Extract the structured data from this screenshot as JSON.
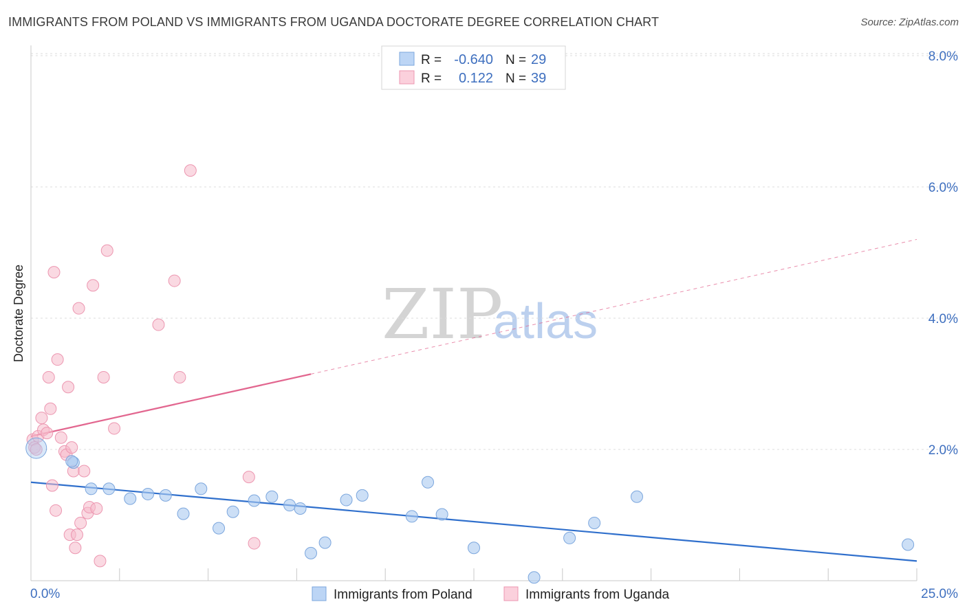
{
  "header": {
    "title": "IMMIGRANTS FROM POLAND VS IMMIGRANTS FROM UGANDA DOCTORATE DEGREE CORRELATION CHART",
    "source": "Source: ZipAtlas.com"
  },
  "watermark": {
    "zip": "ZIP",
    "atlas": "atlas"
  },
  "legend": {
    "r_label": "R =",
    "n_label": "N =",
    "rows": [
      {
        "r": "-0.640",
        "n": "29"
      },
      {
        "r": "0.122",
        "n": "39"
      }
    ]
  },
  "colors": {
    "poland_fill": "#aac9f0",
    "poland_stroke": "#7ba6dd",
    "poland_line": "#2f6fcc",
    "uganda_fill": "#f6b9ca",
    "uganda_stroke": "#ec96b0",
    "uganda_line": "#e2668f",
    "axis_text": "#3e6fbf",
    "grid": "#dddddd"
  },
  "chart_data": {
    "type": "scatter",
    "title": "IMMIGRANTS FROM POLAND VS IMMIGRANTS FROM UGANDA DOCTORATE DEGREE CORRELATION CHART",
    "xlabel": "",
    "ylabel": "Doctorate Degree",
    "xlim": [
      0,
      25
    ],
    "ylim": [
      0,
      8.3
    ],
    "x_tick_labels": [
      "0.0%",
      "25.0%"
    ],
    "y_ticks": [
      2,
      4,
      6,
      8
    ],
    "y_tick_labels": [
      "2.0%",
      "4.0%",
      "6.0%",
      "8.0%"
    ],
    "grid": true,
    "legend_position": "bottom",
    "series": [
      {
        "name": "Immigrants from Poland",
        "r": -0.64,
        "n": 29,
        "trend": {
          "x0": 0,
          "y0": 1.5,
          "x1": 25,
          "y1": 0.3,
          "solid_until": 25
        },
        "points": [
          {
            "x": 0.15,
            "y": 2.02,
            "big": true
          },
          {
            "x": 1.2,
            "y": 1.8
          },
          {
            "x": 1.15,
            "y": 1.82
          },
          {
            "x": 1.7,
            "y": 1.4
          },
          {
            "x": 2.2,
            "y": 1.4
          },
          {
            "x": 2.8,
            "y": 1.25
          },
          {
            "x": 3.3,
            "y": 1.32
          },
          {
            "x": 3.8,
            "y": 1.3
          },
          {
            "x": 4.3,
            "y": 1.02
          },
          {
            "x": 4.8,
            "y": 1.4
          },
          {
            "x": 5.3,
            "y": 0.8
          },
          {
            "x": 5.7,
            "y": 1.05
          },
          {
            "x": 6.3,
            "y": 1.22
          },
          {
            "x": 6.8,
            "y": 1.28
          },
          {
            "x": 7.3,
            "y": 1.15
          },
          {
            "x": 7.6,
            "y": 1.1
          },
          {
            "x": 7.9,
            "y": 0.42
          },
          {
            "x": 8.3,
            "y": 0.58
          },
          {
            "x": 8.9,
            "y": 1.23
          },
          {
            "x": 9.35,
            "y": 1.3
          },
          {
            "x": 10.75,
            "y": 0.98
          },
          {
            "x": 11.2,
            "y": 1.5
          },
          {
            "x": 11.6,
            "y": 1.01
          },
          {
            "x": 12.5,
            "y": 0.5
          },
          {
            "x": 14.2,
            "y": 0.05
          },
          {
            "x": 15.2,
            "y": 0.65
          },
          {
            "x": 15.9,
            "y": 0.88
          },
          {
            "x": 17.1,
            "y": 1.28
          },
          {
            "x": 24.75,
            "y": 0.55
          }
        ]
      },
      {
        "name": "Immigrants from Uganda",
        "r": 0.122,
        "n": 39,
        "trend": {
          "x0": 0,
          "y0": 2.2,
          "x1": 25,
          "y1": 5.2,
          "solid_until": 7.9
        },
        "points": [
          {
            "x": 0.05,
            "y": 2.15
          },
          {
            "x": 0.1,
            "y": 2.03
          },
          {
            "x": 0.15,
            "y": 2.0
          },
          {
            "x": 0.2,
            "y": 2.2
          },
          {
            "x": 0.3,
            "y": 2.48
          },
          {
            "x": 0.35,
            "y": 2.3
          },
          {
            "x": 0.45,
            "y": 2.25
          },
          {
            "x": 0.5,
            "y": 3.1
          },
          {
            "x": 0.55,
            "y": 2.62
          },
          {
            "x": 0.6,
            "y": 1.45
          },
          {
            "x": 0.65,
            "y": 4.7
          },
          {
            "x": 0.7,
            "y": 1.07
          },
          {
            "x": 0.75,
            "y": 3.37
          },
          {
            "x": 0.85,
            "y": 2.18
          },
          {
            "x": 0.95,
            "y": 1.97
          },
          {
            "x": 1.0,
            "y": 1.92
          },
          {
            "x": 1.05,
            "y": 2.95
          },
          {
            "x": 1.1,
            "y": 0.7
          },
          {
            "x": 1.15,
            "y": 2.03
          },
          {
            "x": 1.2,
            "y": 1.67
          },
          {
            "x": 1.25,
            "y": 0.5
          },
          {
            "x": 1.3,
            "y": 0.7
          },
          {
            "x": 1.35,
            "y": 4.15
          },
          {
            "x": 1.4,
            "y": 0.88
          },
          {
            "x": 1.5,
            "y": 1.67
          },
          {
            "x": 1.6,
            "y": 1.03
          },
          {
            "x": 1.65,
            "y": 1.12
          },
          {
            "x": 1.75,
            "y": 4.5
          },
          {
            "x": 1.85,
            "y": 1.1
          },
          {
            "x": 1.95,
            "y": 0.3
          },
          {
            "x": 2.05,
            "y": 3.1
          },
          {
            "x": 2.15,
            "y": 5.03
          },
          {
            "x": 2.35,
            "y": 2.32
          },
          {
            "x": 3.6,
            "y": 3.9
          },
          {
            "x": 4.05,
            "y": 4.57
          },
          {
            "x": 4.2,
            "y": 3.1
          },
          {
            "x": 4.5,
            "y": 6.25
          },
          {
            "x": 6.15,
            "y": 1.58
          },
          {
            "x": 6.3,
            "y": 0.57
          }
        ]
      }
    ]
  }
}
